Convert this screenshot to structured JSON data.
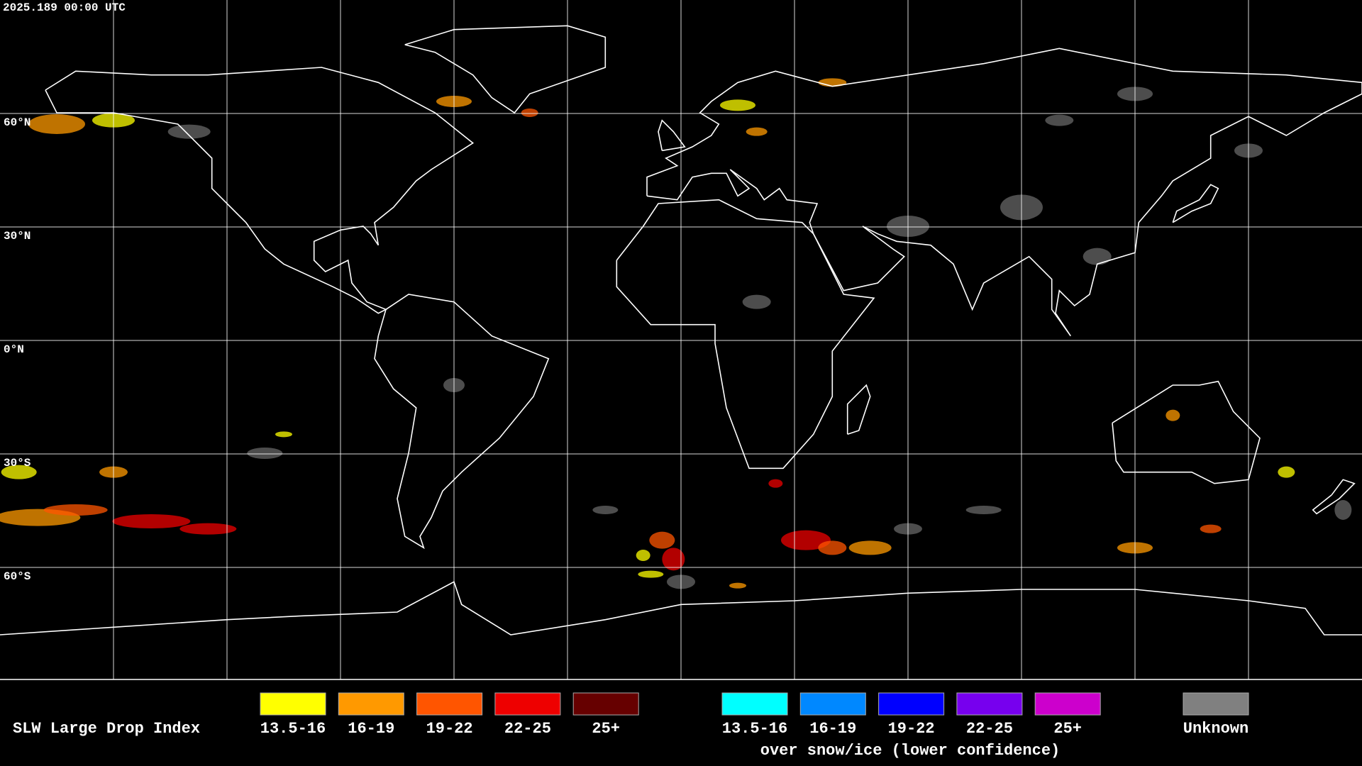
{
  "timestamp": "2025.189 00:00 UTC",
  "latitude_labels": [
    "60°N",
    "30°N",
    "0°N",
    "30°S",
    "60°S"
  ],
  "legend": {
    "title": "SLW Large Drop Index",
    "categories": [
      {
        "label": "13.5-16",
        "color": "#ffff00"
      },
      {
        "label": "16-19",
        "color": "#ff9900"
      },
      {
        "label": "19-22",
        "color": "#ff5500"
      },
      {
        "label": "22-25",
        "color": "#ee0000"
      },
      {
        "label": "25+",
        "color": "#660000"
      }
    ],
    "snow_ice_categories": [
      {
        "label": "13.5-16",
        "color": "#00ffff"
      },
      {
        "label": "16-19",
        "color": "#0088ff"
      },
      {
        "label": "19-22",
        "color": "#0000ff"
      },
      {
        "label": "22-25",
        "color": "#7700ee"
      },
      {
        "label": "25+",
        "color": "#cc00cc"
      }
    ],
    "snow_ice_note": "over snow/ice (lower confidence)",
    "unknown": {
      "label": "Unknown",
      "color": "#808080"
    }
  }
}
